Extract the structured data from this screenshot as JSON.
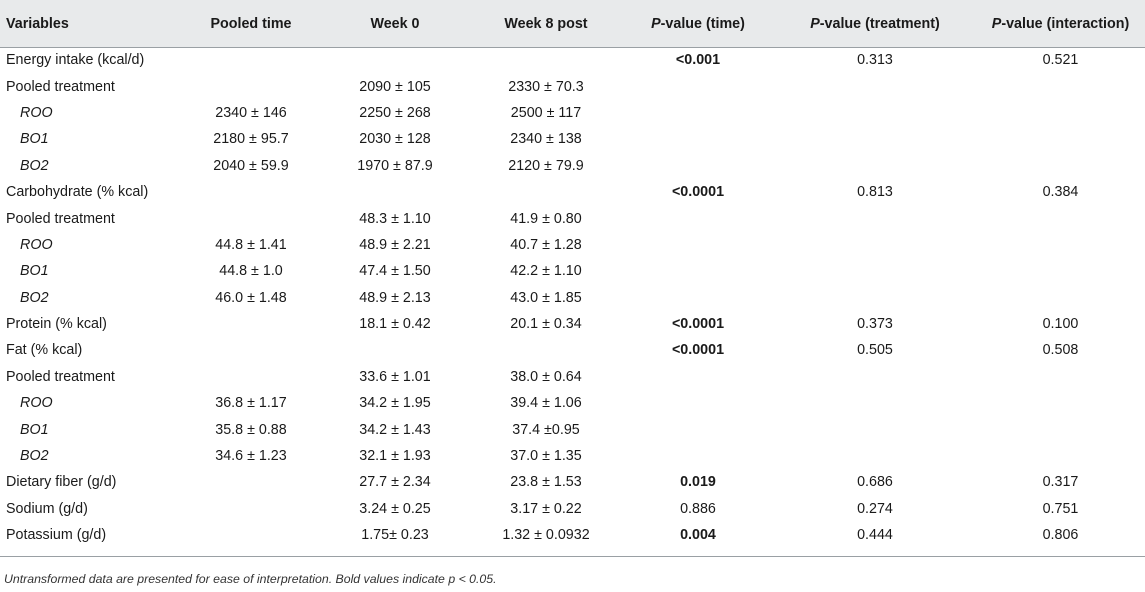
{
  "table": {
    "header": {
      "variables": "Variables",
      "pooled_time": "Pooled time",
      "week0": "Week 0",
      "week8": "Week 8 post",
      "p_letter": "P",
      "p_time_suffix": "-value (time)",
      "p_treatment_suffix": "-value (treatment)",
      "p_interaction_suffix": "-value (interaction)"
    },
    "rows": [
      {
        "variable": "Energy intake (kcal/d)",
        "sub": false,
        "pooled_time": "",
        "week0": "",
        "week8": "",
        "p_time": "<0.001",
        "p_time_bold": true,
        "p_treatment": "0.313",
        "p_interaction": "0.521"
      },
      {
        "variable": "Pooled treatment",
        "sub": false,
        "pooled_time": "",
        "week0": "2090 ± 105",
        "week8": "2330 ± 70.3",
        "p_time": "",
        "p_time_bold": false,
        "p_treatment": "",
        "p_interaction": ""
      },
      {
        "variable": "ROO",
        "sub": true,
        "pooled_time": "2340 ± 146",
        "week0": "2250 ± 268",
        "week8": "2500 ± 117",
        "p_time": "",
        "p_time_bold": false,
        "p_treatment": "",
        "p_interaction": ""
      },
      {
        "variable": "BO1",
        "sub": true,
        "pooled_time": "2180 ± 95.7",
        "week0": "2030 ± 128",
        "week8": "2340 ± 138",
        "p_time": "",
        "p_time_bold": false,
        "p_treatment": "",
        "p_interaction": ""
      },
      {
        "variable": "BO2",
        "sub": true,
        "pooled_time": "2040 ± 59.9",
        "week0": "1970 ± 87.9",
        "week8": "2120 ± 79.9",
        "p_time": "",
        "p_time_bold": false,
        "p_treatment": "",
        "p_interaction": ""
      },
      {
        "variable": "Carbohydrate (% kcal)",
        "sub": false,
        "pooled_time": "",
        "week0": "",
        "week8": "",
        "p_time": "<0.0001",
        "p_time_bold": true,
        "p_treatment": "0.813",
        "p_interaction": "0.384"
      },
      {
        "variable": "Pooled treatment",
        "sub": false,
        "pooled_time": "",
        "week0": "48.3 ± 1.10",
        "week8": "41.9 ± 0.80",
        "p_time": "",
        "p_time_bold": false,
        "p_treatment": "",
        "p_interaction": ""
      },
      {
        "variable": "ROO",
        "sub": true,
        "pooled_time": "44.8 ± 1.41",
        "week0": "48.9 ± 2.21",
        "week8": "40.7 ± 1.28",
        "p_time": "",
        "p_time_bold": false,
        "p_treatment": "",
        "p_interaction": ""
      },
      {
        "variable": "BO1",
        "sub": true,
        "pooled_time": "44.8 ± 1.0",
        "week0": "47.4 ± 1.50",
        "week8": "42.2 ± 1.10",
        "p_time": "",
        "p_time_bold": false,
        "p_treatment": "",
        "p_interaction": ""
      },
      {
        "variable": "BO2",
        "sub": true,
        "pooled_time": "46.0 ± 1.48",
        "week0": "48.9 ± 2.13",
        "week8": "43.0 ± 1.85",
        "p_time": "",
        "p_time_bold": false,
        "p_treatment": "",
        "p_interaction": ""
      },
      {
        "variable": "Protein (% kcal)",
        "sub": false,
        "pooled_time": "",
        "week0": "18.1 ± 0.42",
        "week8": "20.1 ± 0.34",
        "p_time": "<0.0001",
        "p_time_bold": true,
        "p_treatment": "0.373",
        "p_interaction": "0.100"
      },
      {
        "variable": "Fat (% kcal)",
        "sub": false,
        "pooled_time": "",
        "week0": "",
        "week8": "",
        "p_time": "<0.0001",
        "p_time_bold": true,
        "p_treatment": "0.505",
        "p_interaction": "0.508"
      },
      {
        "variable": "Pooled treatment",
        "sub": false,
        "pooled_time": "",
        "week0": "33.6 ± 1.01",
        "week8": "38.0 ± 0.64",
        "p_time": "",
        "p_time_bold": false,
        "p_treatment": "",
        "p_interaction": ""
      },
      {
        "variable": "ROO",
        "sub": true,
        "pooled_time": "36.8 ± 1.17",
        "week0": "34.2 ± 1.95",
        "week8": "39.4 ± 1.06",
        "p_time": "",
        "p_time_bold": false,
        "p_treatment": "",
        "p_interaction": ""
      },
      {
        "variable": "BO1",
        "sub": true,
        "pooled_time": "35.8 ± 0.88",
        "week0": "34.2 ± 1.43",
        "week8": "37.4 ±0.95",
        "p_time": "",
        "p_time_bold": false,
        "p_treatment": "",
        "p_interaction": ""
      },
      {
        "variable": "BO2",
        "sub": true,
        "pooled_time": "34.6 ± 1.23",
        "week0": "32.1 ± 1.93",
        "week8": "37.0 ± 1.35",
        "p_time": "",
        "p_time_bold": false,
        "p_treatment": "",
        "p_interaction": ""
      },
      {
        "variable": "Dietary fiber (g/d)",
        "sub": false,
        "pooled_time": "",
        "week0": "27.7 ± 2.34",
        "week8": "23.8 ± 1.53",
        "p_time": "0.019",
        "p_time_bold": true,
        "p_treatment": "0.686",
        "p_interaction": "0.317"
      },
      {
        "variable": "Sodium (g/d)",
        "sub": false,
        "pooled_time": "",
        "week0": "3.24 ± 0.25",
        "week8": "3.17 ± 0.22",
        "p_time": "0.886",
        "p_time_bold": false,
        "p_treatment": "0.274",
        "p_interaction": "0.751"
      },
      {
        "variable": "Potassium (g/d)",
        "sub": false,
        "pooled_time": "",
        "week0": "1.75± 0.23",
        "week8": "1.32 ± 0.0932",
        "p_time": "0.004",
        "p_time_bold": true,
        "p_treatment": "0.444",
        "p_interaction": "0.806"
      }
    ]
  },
  "footnote": "Untransformed data are presented for ease of interpretation. Bold values indicate p < 0.05."
}
